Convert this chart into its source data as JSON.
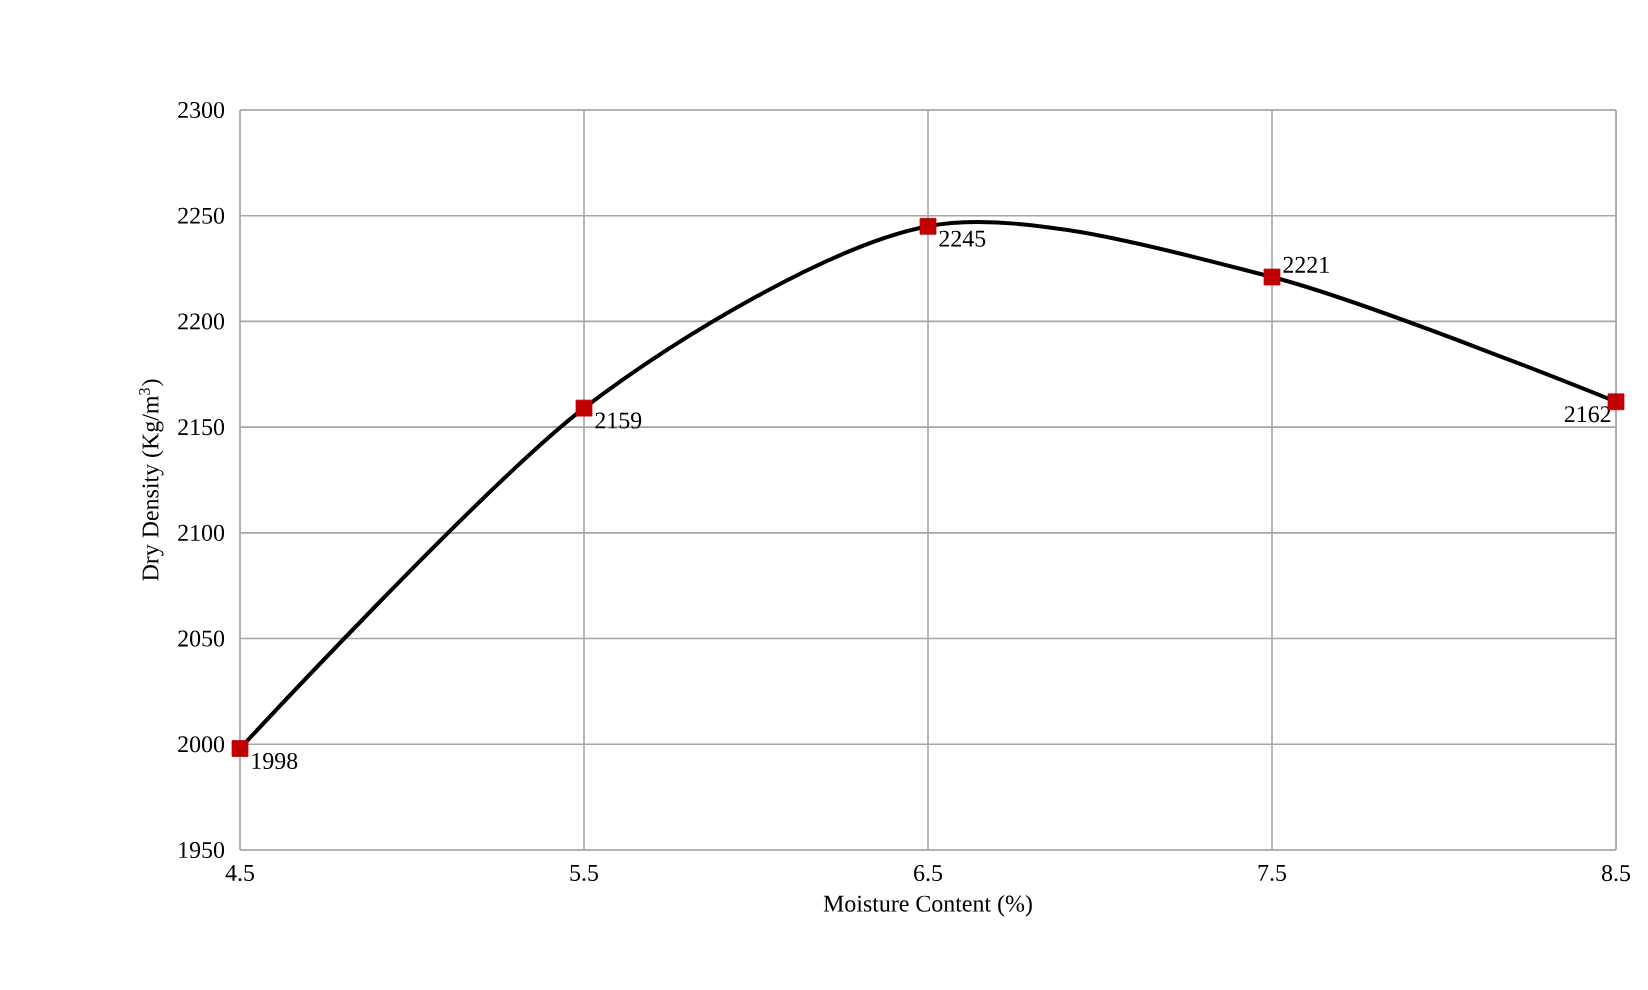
{
  "chart_data": {
    "type": "line",
    "xlabel": "Moisture Content (%)",
    "ylabel": "Dry Density (Kg/m$^{3}$)",
    "x": [
      4.5,
      5.5,
      6.5,
      7.5,
      8.5
    ],
    "series": [
      {
        "color": "#000000",
        "colors": [
          "#c00000",
          "#c00000",
          "#c00000",
          "#c00000",
          "#c00000"
        ],
        "values": [
          1998,
          2159,
          2245,
          2221,
          2162
        ]
      }
    ],
    "xlim": [
      4.5,
      8.5
    ],
    "xticks": [
      4.5,
      5.5,
      6.5,
      7.5,
      8.5
    ],
    "ylim": [
      1950,
      2300
    ],
    "yticks": [
      1950,
      2000,
      2050,
      2100,
      2150,
      2200,
      2250,
      2300
    ],
    "grid": true,
    "marker": "square",
    "line_style": "solid",
    "data_labels": true
  }
}
